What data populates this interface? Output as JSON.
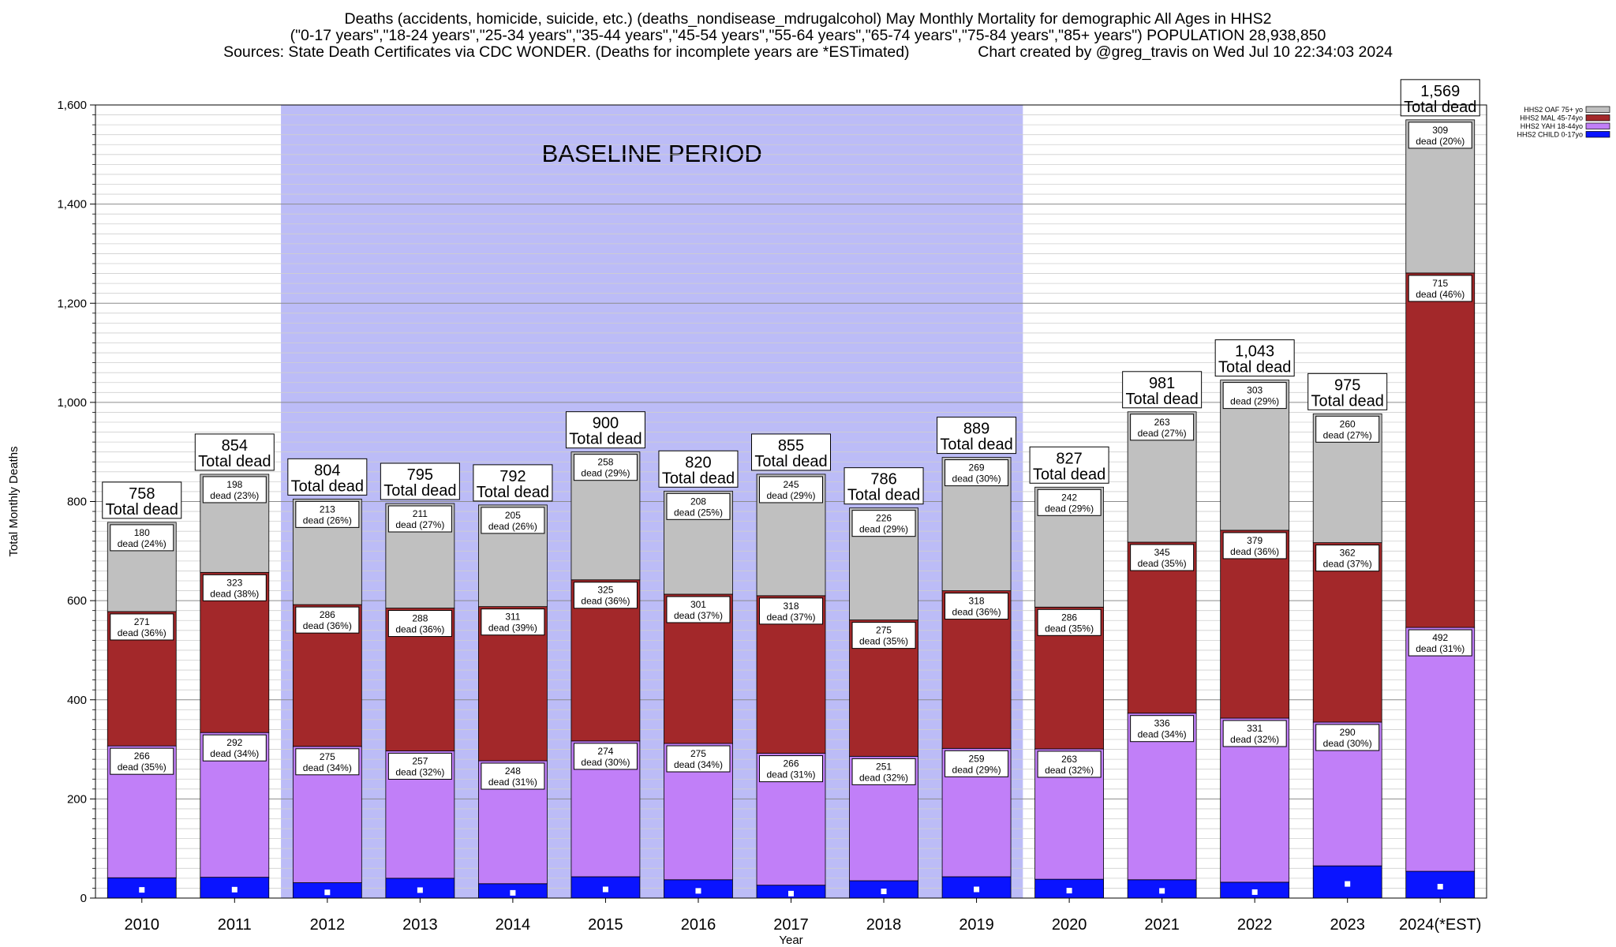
{
  "title_lines": [
    "Deaths (accidents, homicide, suicide, etc.) (deaths_nondisease_mdrugalcohol) May Monthly Mortality for demographic All Ages in HHS2",
    "(\"0-17 years\",\"18-24 years\",\"25-34 years\",\"35-44 years\",\"45-54 years\",\"55-64 years\",\"65-74 years\",\"75-84 years\",\"85+ years\") POPULATION 28,938,850",
    "Sources: State Death Certificates via CDC WONDER. (Deaths for incomplete years are *ESTimated)                Chart created by @greg_travis on Wed Jul 10 22:34:03 2024"
  ],
  "chart_data": {
    "type": "bar",
    "stacked": true,
    "xlabel": "Year",
    "ylabel": "Total Monthly Deaths",
    "ylim": [
      0,
      1600
    ],
    "yticks": [
      0,
      200,
      400,
      600,
      800,
      1000,
      1200,
      1400,
      1600
    ],
    "ytick_labels": [
      "0",
      "200",
      "400",
      "600",
      "800",
      "1,000",
      "1,200",
      "1,400",
      "1,600"
    ],
    "grid": "horizontal",
    "legend_position": "top-right",
    "categories": [
      "2010",
      "2011",
      "2012",
      "2013",
      "2014",
      "2015",
      "2016",
      "2017",
      "2018",
      "2019",
      "2020",
      "2021",
      "2022",
      "2023",
      "2024(*EST)"
    ],
    "baseline_period": {
      "label": "BASELINE PERIOD",
      "start": "2012",
      "end": "2019",
      "color": "#bcbcf7"
    },
    "total_suffix": "Total dead",
    "totals": [
      758,
      854,
      804,
      795,
      792,
      900,
      820,
      855,
      786,
      889,
      827,
      981,
      1043,
      975,
      1569
    ],
    "total_labels": [
      "758",
      "854",
      "804",
      "795",
      "792",
      "900",
      "820",
      "855",
      "786",
      "889",
      "827",
      "981",
      "1,043",
      "975",
      "1,569"
    ],
    "series": [
      {
        "name": "HHS2 CHILD 0-17yo",
        "color": "#0a14ff",
        "values": [
          41,
          42,
          31,
          40,
          29,
          43,
          37,
          26,
          35,
          43,
          38,
          37,
          32,
          65,
          54
        ],
        "value_labels": null,
        "pct_labels": null
      },
      {
        "name": "HHS2 YAH 18-44yo",
        "color": "#c17ff8",
        "values": [
          266,
          292,
          275,
          257,
          248,
          274,
          275,
          266,
          251,
          259,
          263,
          336,
          331,
          290,
          492
        ],
        "value_labels": [
          "266",
          "292",
          "275",
          "257",
          "248",
          "274",
          "275",
          "266",
          "251",
          "259",
          "263",
          "336",
          "331",
          "290",
          "492"
        ],
        "pct_labels": [
          "dead (35%)",
          "dead (34%)",
          "dead (34%)",
          "dead (32%)",
          "dead (31%)",
          "dead (30%)",
          "dead (34%)",
          "dead (31%)",
          "dead (32%)",
          "dead (29%)",
          "dead (32%)",
          "dead (34%)",
          "dead (32%)",
          "dead (30%)",
          "dead (31%)"
        ]
      },
      {
        "name": "HHS2 MAL 45-74yo",
        "color": "#a3282a",
        "values": [
          271,
          323,
          286,
          288,
          311,
          325,
          301,
          318,
          275,
          318,
          286,
          345,
          379,
          362,
          715
        ],
        "value_labels": [
          "271",
          "323",
          "286",
          "288",
          "311",
          "325",
          "301",
          "318",
          "275",
          "318",
          "286",
          "345",
          "379",
          "362",
          "715"
        ],
        "pct_labels": [
          "dead (36%)",
          "dead (38%)",
          "dead (36%)",
          "dead (36%)",
          "dead (39%)",
          "dead (36%)",
          "dead (37%)",
          "dead (37%)",
          "dead (35%)",
          "dead (36%)",
          "dead (35%)",
          "dead (35%)",
          "dead (36%)",
          "dead (37%)",
          "dead (46%)"
        ]
      },
      {
        "name": "HHS2 OAF 75+ yo",
        "color": "#c0c0c0",
        "values": [
          180,
          198,
          213,
          211,
          205,
          258,
          208,
          245,
          226,
          269,
          242,
          263,
          303,
          260,
          309
        ],
        "value_labels": [
          "180",
          "198",
          "213",
          "211",
          "205",
          "258",
          "208",
          "245",
          "226",
          "269",
          "242",
          "263",
          "303",
          "260",
          "309"
        ],
        "pct_labels": [
          "dead (24%)",
          "dead (23%)",
          "dead (26%)",
          "dead (27%)",
          "dead (26%)",
          "dead (29%)",
          "dead (25%)",
          "dead (29%)",
          "dead (29%)",
          "dead (30%)",
          "dead (29%)",
          "dead (27%)",
          "dead (29%)",
          "dead (27%)",
          "dead (20%)"
        ]
      }
    ],
    "legend_order": [
      "HHS2 OAF 75+ yo",
      "HHS2 MAL 45-74yo",
      "HHS2 YAH 18-44yo",
      "HHS2 CHILD 0-17yo"
    ]
  }
}
